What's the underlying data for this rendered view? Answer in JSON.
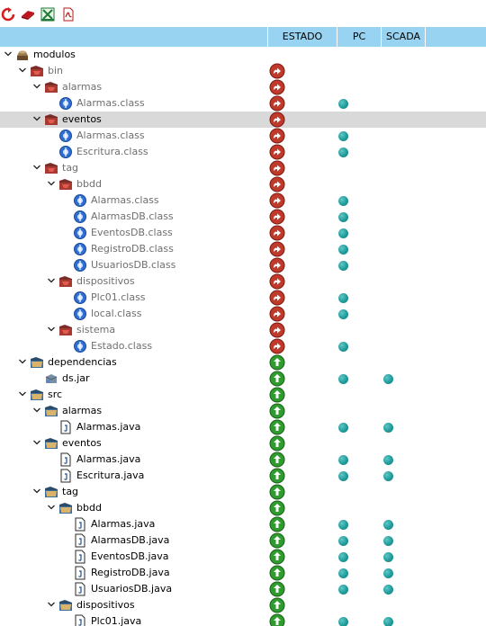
{
  "toolbar": {
    "buttons": [
      {
        "name": "refresh-button",
        "icon": "refresh-icon"
      },
      {
        "name": "clear-button",
        "icon": "eraser-icon"
      },
      {
        "name": "excel-export-button",
        "icon": "excel-icon"
      },
      {
        "name": "pdf-export-button",
        "icon": "pdf-icon"
      }
    ]
  },
  "columns": {
    "estado": "ESTADO",
    "pc": "PC",
    "scada": "SCADA"
  },
  "colors": {
    "header_bg": "#99d3f2",
    "selected_row": "#d9d9d9",
    "status_error": "#c0392b",
    "status_ok": "#2e9d2e",
    "dot": "#1f9c9a"
  },
  "tree": [
    {
      "label": "modulos",
      "level": 0,
      "type": "project",
      "expanded": true,
      "status": null,
      "pc": false,
      "scada": false
    },
    {
      "label": "bin",
      "level": 1,
      "type": "folder-red",
      "expanded": true,
      "status": "error",
      "pc": false,
      "scada": false,
      "gray": true
    },
    {
      "label": "alarmas",
      "level": 2,
      "type": "folder-red",
      "expanded": true,
      "status": "error",
      "pc": false,
      "scada": false,
      "gray": true
    },
    {
      "label": "Alarmas.class",
      "level": 3,
      "type": "class",
      "status": "error",
      "pc": true,
      "scada": false,
      "gray": true
    },
    {
      "label": "eventos",
      "level": 2,
      "type": "folder-red",
      "expanded": true,
      "status": "error",
      "pc": false,
      "scada": false,
      "selected": true
    },
    {
      "label": "Alarmas.class",
      "level": 3,
      "type": "class",
      "status": "error",
      "pc": true,
      "scada": false,
      "gray": true
    },
    {
      "label": "Escritura.class",
      "level": 3,
      "type": "class",
      "status": "error",
      "pc": true,
      "scada": false,
      "gray": true
    },
    {
      "label": "tag",
      "level": 2,
      "type": "folder-red",
      "expanded": true,
      "status": "error",
      "pc": false,
      "scada": false,
      "gray": true
    },
    {
      "label": "bbdd",
      "level": 3,
      "type": "folder-red",
      "expanded": true,
      "status": "error",
      "pc": false,
      "scada": false,
      "gray": true
    },
    {
      "label": "Alarmas.class",
      "level": 4,
      "type": "class",
      "status": "error",
      "pc": true,
      "scada": false,
      "gray": true
    },
    {
      "label": "AlarmasDB.class",
      "level": 4,
      "type": "class",
      "status": "error",
      "pc": true,
      "scada": false,
      "gray": true
    },
    {
      "label": "EventosDB.class",
      "level": 4,
      "type": "class",
      "status": "error",
      "pc": true,
      "scada": false,
      "gray": true
    },
    {
      "label": "RegistroDB.class",
      "level": 4,
      "type": "class",
      "status": "error",
      "pc": true,
      "scada": false,
      "gray": true
    },
    {
      "label": "UsuariosDB.class",
      "level": 4,
      "type": "class",
      "status": "error",
      "pc": true,
      "scada": false,
      "gray": true
    },
    {
      "label": "dispositivos",
      "level": 3,
      "type": "folder-red",
      "expanded": true,
      "status": "error",
      "pc": false,
      "scada": false,
      "gray": true
    },
    {
      "label": "Plc01.class",
      "level": 4,
      "type": "class",
      "status": "error",
      "pc": true,
      "scada": false,
      "gray": true
    },
    {
      "label": "local.class",
      "level": 4,
      "type": "class",
      "status": "error",
      "pc": true,
      "scada": false,
      "gray": true
    },
    {
      "label": "sistema",
      "level": 3,
      "type": "folder-red",
      "expanded": true,
      "status": "error",
      "pc": false,
      "scada": false,
      "gray": true
    },
    {
      "label": "Estado.class",
      "level": 4,
      "type": "class",
      "status": "error",
      "pc": true,
      "scada": false,
      "gray": true
    },
    {
      "label": "dependencias",
      "level": 1,
      "type": "folder-blue",
      "expanded": true,
      "status": "ok",
      "pc": false,
      "scada": false
    },
    {
      "label": "ds.jar",
      "level": 2,
      "type": "jar",
      "status": "ok",
      "pc": true,
      "scada": true
    },
    {
      "label": "src",
      "level": 1,
      "type": "folder-blue",
      "expanded": true,
      "status": "ok",
      "pc": false,
      "scada": false
    },
    {
      "label": "alarmas",
      "level": 2,
      "type": "folder-blue",
      "expanded": true,
      "status": "ok",
      "pc": false,
      "scada": false
    },
    {
      "label": "Alarmas.java",
      "level": 3,
      "type": "java",
      "status": "ok",
      "pc": true,
      "scada": true
    },
    {
      "label": "eventos",
      "level": 2,
      "type": "folder-blue",
      "expanded": true,
      "status": "ok",
      "pc": false,
      "scada": false
    },
    {
      "label": "Alarmas.java",
      "level": 3,
      "type": "java",
      "status": "ok",
      "pc": true,
      "scada": true
    },
    {
      "label": "Escritura.java",
      "level": 3,
      "type": "java",
      "status": "ok",
      "pc": true,
      "scada": true
    },
    {
      "label": "tag",
      "level": 2,
      "type": "folder-blue",
      "expanded": true,
      "status": "ok",
      "pc": false,
      "scada": false
    },
    {
      "label": "bbdd",
      "level": 3,
      "type": "folder-blue",
      "expanded": true,
      "status": "ok",
      "pc": false,
      "scada": false
    },
    {
      "label": "Alarmas.java",
      "level": 4,
      "type": "java",
      "status": "ok",
      "pc": true,
      "scada": true
    },
    {
      "label": "AlarmasDB.java",
      "level": 4,
      "type": "java",
      "status": "ok",
      "pc": true,
      "scada": true
    },
    {
      "label": "EventosDB.java",
      "level": 4,
      "type": "java",
      "status": "ok",
      "pc": true,
      "scada": true
    },
    {
      "label": "RegistroDB.java",
      "level": 4,
      "type": "java",
      "status": "ok",
      "pc": true,
      "scada": true
    },
    {
      "label": "UsuariosDB.java",
      "level": 4,
      "type": "java",
      "status": "ok",
      "pc": true,
      "scada": true
    },
    {
      "label": "dispositivos",
      "level": 3,
      "type": "folder-blue",
      "expanded": true,
      "status": "ok",
      "pc": false,
      "scada": false
    },
    {
      "label": "Plc01.java",
      "level": 4,
      "type": "java",
      "status": "ok",
      "pc": true,
      "scada": true
    }
  ]
}
